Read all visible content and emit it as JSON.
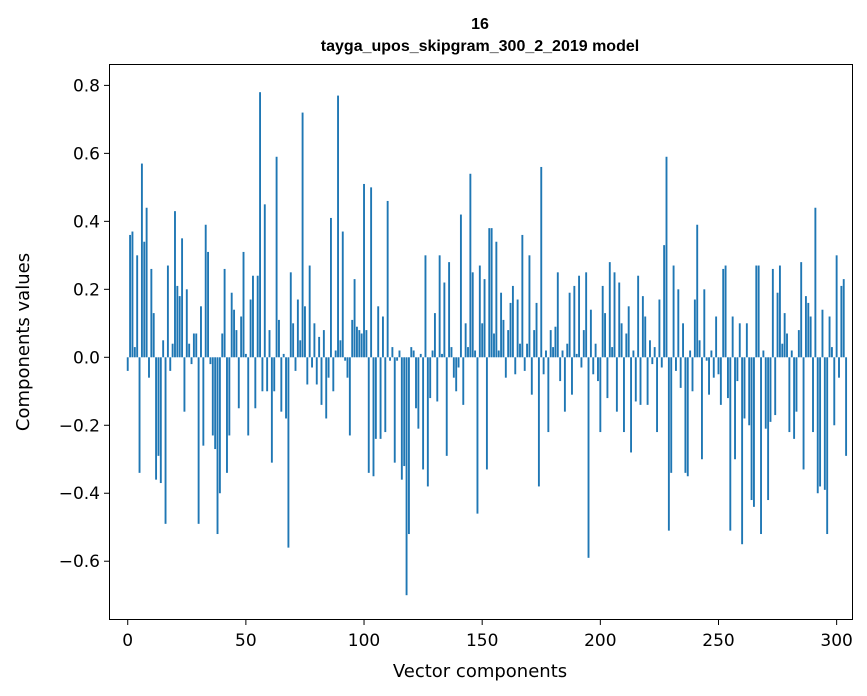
{
  "chart_data": {
    "type": "bar",
    "title": "16",
    "subtitle": "tayga_upos_skipgram_300_2_2019 model",
    "xlabel": "Vector components",
    "ylabel": "Components values",
    "xlim": [
      -7.5,
      306.5
    ],
    "ylim": [
      -0.77,
      0.86
    ],
    "xticks": [
      0,
      50,
      100,
      150,
      200,
      250,
      300
    ],
    "xtick_labels": [
      "0",
      "50",
      "100",
      "150",
      "200",
      "250",
      "300"
    ],
    "yticks": [
      -0.6,
      -0.4,
      -0.2,
      0.0,
      0.2,
      0.4,
      0.6,
      0.8
    ],
    "ytick_labels": [
      "−0.6",
      "−0.4",
      "−0.2",
      "0.0",
      "0.2",
      "0.4",
      "0.6",
      "0.8"
    ],
    "grid": false,
    "bar_color": "#1f77b4",
    "values": [
      -0.04,
      0.36,
      0.37,
      0.03,
      0.3,
      -0.34,
      0.57,
      0.34,
      0.44,
      -0.06,
      0.26,
      0.13,
      -0.36,
      -0.29,
      -0.37,
      0.05,
      -0.49,
      0.27,
      -0.04,
      0.04,
      0.43,
      0.21,
      0.18,
      0.35,
      -0.16,
      0.2,
      0.04,
      -0.02,
      0.07,
      0.07,
      -0.49,
      0.15,
      -0.26,
      0.39,
      0.31,
      -0.02,
      -0.23,
      -0.27,
      -0.52,
      -0.4,
      0.07,
      0.26,
      -0.34,
      -0.23,
      0.19,
      0.14,
      0.08,
      -0.15,
      0.12,
      0.31,
      0.01,
      -0.23,
      0.17,
      0.24,
      -0.15,
      0.24,
      0.78,
      -0.1,
      0.45,
      -0.1,
      0.08,
      -0.31,
      -0.1,
      0.59,
      0.11,
      -0.16,
      0.01,
      -0.18,
      -0.56,
      0.25,
      0.1,
      -0.04,
      0.17,
      0.05,
      0.72,
      0.15,
      -0.08,
      0.27,
      -0.03,
      0.1,
      -0.08,
      0.06,
      -0.14,
      0.08,
      -0.18,
      -0.06,
      0.41,
      -0.1,
      0.02,
      0.77,
      0.05,
      0.37,
      -0.01,
      -0.06,
      -0.23,
      0.11,
      0.23,
      0.09,
      0.08,
      0.07,
      0.51,
      0.08,
      -0.34,
      0.5,
      -0.35,
      -0.24,
      0.15,
      -0.24,
      0.12,
      -0.22,
      0.46,
      -0.01,
      0.03,
      -0.31,
      -0.01,
      0.02,
      -0.36,
      -0.32,
      -0.7,
      -0.52,
      0.03,
      0.02,
      -0.15,
      -0.21,
      0.01,
      -0.33,
      0.3,
      -0.38,
      -0.12,
      0.02,
      0.13,
      -0.13,
      0.3,
      0.01,
      0.22,
      -0.29,
      0.28,
      0.03,
      -0.06,
      -0.1,
      -0.03,
      0.42,
      -0.14,
      0.1,
      0.03,
      0.54,
      0.25,
      0.02,
      -0.46,
      0.27,
      0.1,
      0.23,
      -0.33,
      0.38,
      0.38,
      0.07,
      0.34,
      0.02,
      0.19,
      0.11,
      -0.06,
      0.08,
      0.16,
      0.21,
      -0.05,
      0.17,
      0.04,
      0.36,
      -0.04,
      0.04,
      0.3,
      -0.11,
      0.08,
      0.16,
      -0.38,
      0.56,
      -0.05,
      0.02,
      -0.22,
      0.08,
      0.03,
      0.09,
      0.25,
      -0.07,
      0.02,
      -0.16,
      0.04,
      0.19,
      -0.11,
      0.21,
      0.01,
      0.24,
      -0.03,
      0.08,
      0.25,
      -0.59,
      0.14,
      -0.05,
      0.04,
      -0.07,
      -0.22,
      0.21,
      0.13,
      -0.12,
      0.28,
      0.03,
      0.25,
      -0.16,
      0.22,
      0.1,
      -0.22,
      0.07,
      0.15,
      -0.28,
      0.02,
      -0.13,
      0.24,
      -0.14,
      0.18,
      0.12,
      -0.14,
      0.05,
      -0.02,
      0.03,
      -0.22,
      0.17,
      -0.03,
      0.33,
      0.59,
      -0.51,
      -0.34,
      0.27,
      -0.04,
      0.2,
      -0.09,
      0.1,
      -0.34,
      -0.35,
      0.02,
      -0.1,
      0.17,
      0.39,
      0.05,
      -0.3,
      0.2,
      -0.01,
      -0.11,
      0.02,
      -0.06,
      0.12,
      -0.05,
      -0.14,
      0.26,
      0.27,
      -0.12,
      -0.51,
      0.12,
      -0.3,
      -0.07,
      0.1,
      -0.55,
      -0.18,
      0.1,
      -0.2,
      -0.42,
      -0.44,
      0.27,
      0.27,
      -0.52,
      0.02,
      -0.21,
      -0.42,
      -0.19,
      0.26,
      -0.17,
      0.19,
      0.27,
      0.04,
      0.13,
      0.07,
      -0.22,
      0.02,
      -0.24,
      -0.16,
      0.08,
      0.28,
      -0.33,
      0.18,
      0.16,
      0.12,
      -0.22,
      0.44,
      -0.4,
      -0.38,
      0.14,
      -0.39,
      -0.52,
      0.12,
      0.03,
      -0.2,
      0.3,
      -0.06,
      0.21,
      0.23,
      -0.29
    ]
  }
}
